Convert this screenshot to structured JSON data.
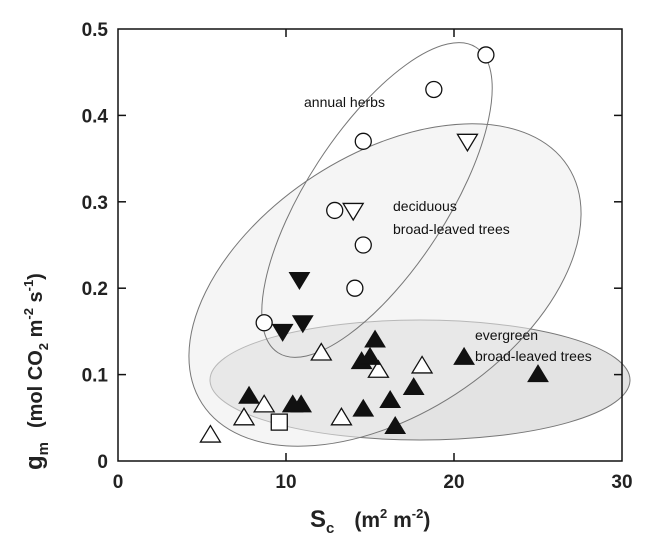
{
  "chart_data": {
    "type": "scatter",
    "xlim": [
      0,
      30
    ],
    "ylim": [
      0,
      0.5
    ],
    "x_ticks": [
      "0",
      "10",
      "20",
      "30"
    ],
    "y_ticks": [
      "0",
      "0.1",
      "0.2",
      "0.3",
      "0.4",
      "0.5"
    ],
    "x_title": {
      "main": "S",
      "sub": "c",
      "units_open": "(m",
      "sup1": "2",
      "units_mid": " m",
      "sup2": "-2",
      "units_close": ")"
    },
    "y_title": {
      "main": "g",
      "sub": "m",
      "part1": "(mol CO",
      "sub2": "2",
      "part2": " m",
      "sup1": "-2",
      "part3": " s",
      "sup2": "-1",
      "part4": ")"
    },
    "annotations": [
      "annual herbs",
      "deciduous",
      "broad-leaved trees",
      "evergreen",
      "broad-leaved trees"
    ],
    "series": [
      {
        "marker": "circle-open",
        "points": [
          [
            8.7,
            0.16
          ],
          [
            12.9,
            0.29
          ],
          [
            14.1,
            0.2
          ],
          [
            14.6,
            0.25
          ],
          [
            14.6,
            0.37
          ],
          [
            18.8,
            0.43
          ],
          [
            21.9,
            0.47
          ]
        ]
      },
      {
        "marker": "triangle-down-open",
        "points": [
          [
            14.0,
            0.29
          ],
          [
            20.8,
            0.37
          ]
        ]
      },
      {
        "marker": "triangle-down-filled",
        "points": [
          [
            9.8,
            0.15
          ],
          [
            10.8,
            0.21
          ],
          [
            11.0,
            0.16
          ]
        ]
      },
      {
        "marker": "triangle-up-open",
        "points": [
          [
            5.5,
            0.03
          ],
          [
            7.5,
            0.05
          ],
          [
            8.7,
            0.065
          ],
          [
            12.1,
            0.125
          ],
          [
            13.3,
            0.05
          ],
          [
            15.5,
            0.105
          ],
          [
            18.1,
            0.11
          ]
        ]
      },
      {
        "marker": "triangle-up-filled",
        "points": [
          [
            7.8,
            0.075
          ],
          [
            10.4,
            0.065
          ],
          [
            10.9,
            0.065
          ],
          [
            14.5,
            0.115
          ],
          [
            15.0,
            0.12
          ],
          [
            15.3,
            0.14
          ],
          [
            14.6,
            0.06
          ],
          [
            16.2,
            0.07
          ],
          [
            16.5,
            0.04
          ],
          [
            17.6,
            0.085
          ],
          [
            20.6,
            0.12
          ],
          [
            25.0,
            0.1
          ]
        ]
      },
      {
        "marker": "square-open",
        "points": [
          [
            9.6,
            0.045
          ]
        ]
      }
    ]
  }
}
